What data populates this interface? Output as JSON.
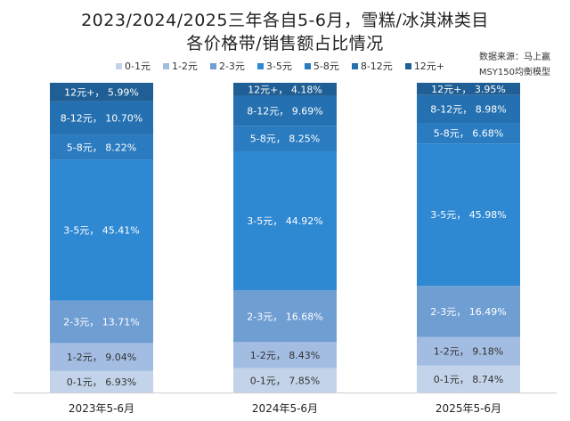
{
  "chart_data": {
    "type": "bar",
    "stacked": true,
    "title": "2023/2024/2025三年各自5-6月，雪糕/冰淇淋类目",
    "subtitle": "各价格带/销售额占比情况",
    "source_lines": [
      "数据来源：马上赢",
      "MSY150均衡模型"
    ],
    "categories": [
      "2023年5-6月",
      "2024年5-6月",
      "2025年5-6月"
    ],
    "unit": "%",
    "ylim": [
      0,
      100
    ],
    "legend_position": "top",
    "series": [
      {
        "name": "0-1元",
        "color": "#c3d4ea",
        "text_color": "#333333",
        "values": [
          6.93,
          7.85,
          8.74
        ]
      },
      {
        "name": "1-2元",
        "color": "#a3bde2",
        "text_color": "#333333",
        "values": [
          9.04,
          8.43,
          9.18
        ]
      },
      {
        "name": "2-3元",
        "color": "#6f9ed3",
        "text_color": "#ffffff",
        "values": [
          13.71,
          16.68,
          16.49
        ]
      },
      {
        "name": "3-5元",
        "color": "#2e88d2",
        "text_color": "#ffffff",
        "values": [
          45.41,
          44.92,
          45.98
        ]
      },
      {
        "name": "5-8元",
        "color": "#2a7bc0",
        "text_color": "#ffffff",
        "values": [
          8.22,
          8.25,
          6.68
        ]
      },
      {
        "name": "8-12元",
        "color": "#2470b0",
        "text_color": "#ffffff",
        "values": [
          10.7,
          9.69,
          8.98
        ]
      },
      {
        "name": "12元+",
        "color": "#1f5f95",
        "text_color": "#ffffff",
        "values": [
          5.99,
          4.18,
          3.95
        ]
      }
    ]
  }
}
